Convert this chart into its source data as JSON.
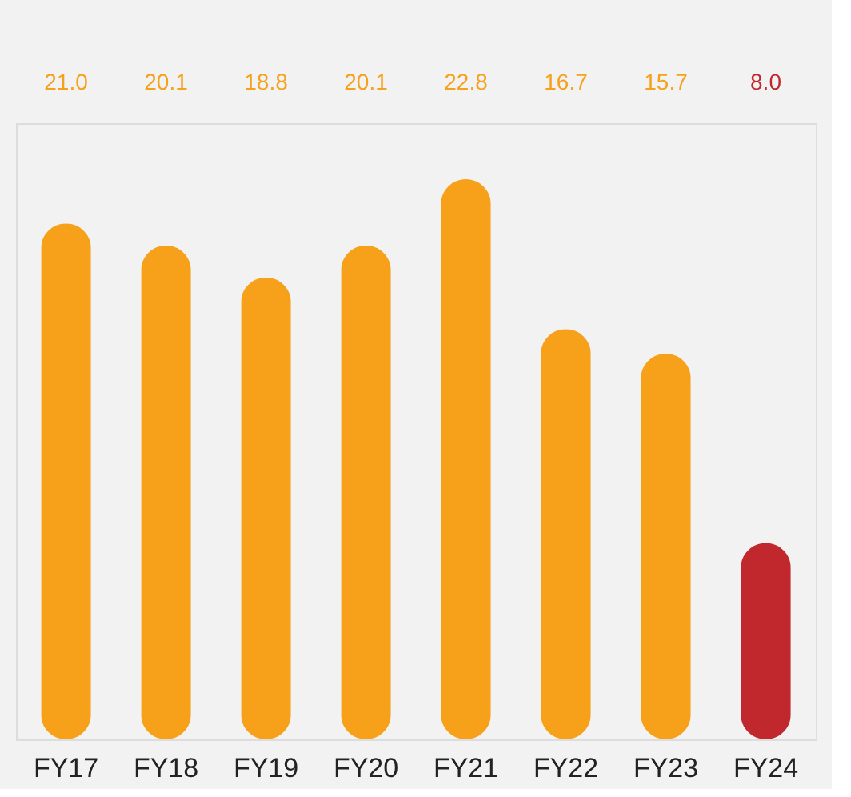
{
  "chart_data": {
    "type": "bar",
    "categories": [
      "FY17",
      "FY18",
      "FY19",
      "FY20",
      "FY21",
      "FY22",
      "FY23",
      "FY24"
    ],
    "values": [
      21.0,
      20.1,
      18.8,
      20.1,
      22.8,
      16.7,
      15.7,
      8.0
    ],
    "colors": [
      "#f7a11a",
      "#f7a11a",
      "#f7a11a",
      "#f7a11a",
      "#f7a11a",
      "#f7a11a",
      "#f7a11a",
      "#c0282d"
    ],
    "value_labels": [
      "21.0",
      "20.1",
      "18.8",
      "20.1",
      "22.8",
      "16.7",
      "15.7",
      "8.0"
    ],
    "grid": false
  }
}
